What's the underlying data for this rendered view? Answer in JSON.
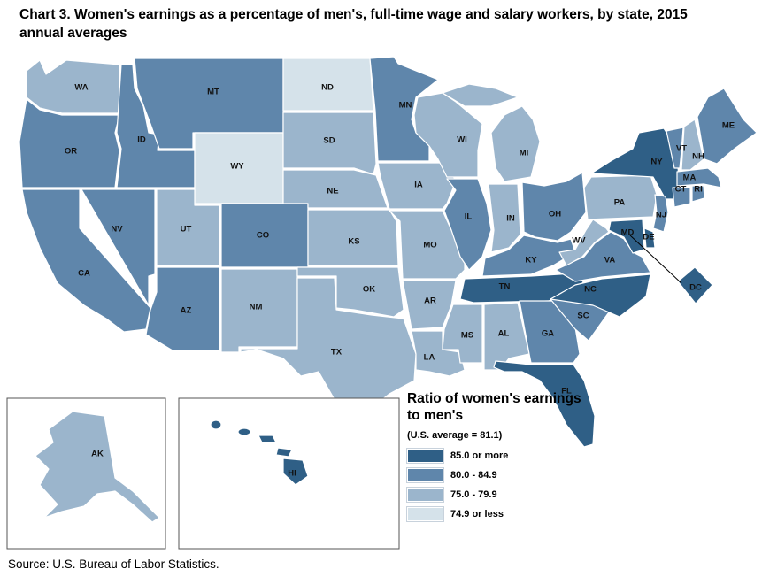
{
  "title": "Chart 3. Women's earnings as a percentage of men's, full-time wage and salary workers, by state, 2015 annual averages",
  "source": "Source: U.S. Bureau of Labor Statistics.",
  "colors": {
    "q1": "#2f5f86",
    "q2": "#5f86ab",
    "q3": "#9bb5cc",
    "q4": "#d5e2ea",
    "border": "#ffffff"
  },
  "legend": {
    "title": "Ratio of women's earnings to men's",
    "subtitle": "(U.S. average = 81.1)",
    "items": [
      {
        "label": "85.0 or more",
        "class": "q1"
      },
      {
        "label": "80.0 - 84.9",
        "class": "q2"
      },
      {
        "label": "75.0 - 79.9",
        "class": "q3"
      },
      {
        "label": "74.9 or less",
        "class": "q4"
      }
    ]
  },
  "states": {
    "WA": "q3",
    "OR": "q2",
    "CA": "q2",
    "NV": "q2",
    "ID": "q2",
    "MT": "q2",
    "WY": "q4",
    "UT": "q3",
    "AZ": "q2",
    "CO": "q2",
    "NM": "q3",
    "ND": "q4",
    "SD": "q3",
    "NE": "q3",
    "KS": "q3",
    "OK": "q3",
    "TX": "q3",
    "MN": "q2",
    "IA": "q3",
    "MO": "q3",
    "AR": "q3",
    "LA": "q3",
    "WI": "q3",
    "IL": "q2",
    "MI": "q3",
    "IN": "q3",
    "OH": "q2",
    "KY": "q2",
    "TN": "q1",
    "MS": "q3",
    "AL": "q3",
    "GA": "q2",
    "FL": "q1",
    "SC": "q2",
    "NC": "q1",
    "VA": "q2",
    "WV": "q3",
    "PA": "q3",
    "NY": "q1",
    "VT": "q2",
    "NH": "q3",
    "ME": "q2",
    "MA": "q2",
    "RI": "q2",
    "CT": "q2",
    "NJ": "q2",
    "DE": "q1",
    "MD": "q1",
    "DC": "q1",
    "AK": "q3",
    "HI": "q1"
  }
}
